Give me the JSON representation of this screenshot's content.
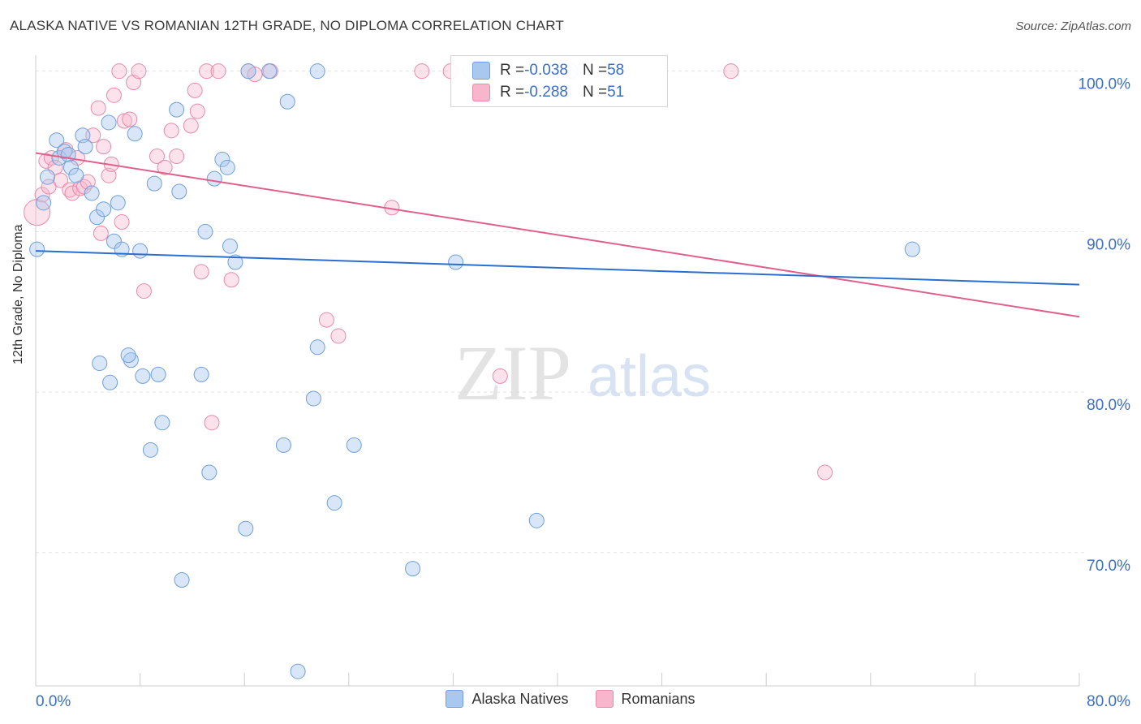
{
  "header": {
    "title": "ALASKA NATIVE VS ROMANIAN 12TH GRADE, NO DIPLOMA CORRELATION CHART",
    "source": "Source: ZipAtlas.com"
  },
  "watermark": {
    "zip": "ZIP",
    "atlas": "atlas"
  },
  "stats_box": {
    "rows": [
      {
        "r_label": "R = ",
        "r_value": "-0.038",
        "n_label": "N = ",
        "n_value": "58",
        "color": "#a8c8f0"
      },
      {
        "r_label": "R = ",
        "r_value": "-0.288",
        "n_label": "N = ",
        "n_value": "51",
        "color": "#f7b6cc"
      }
    ]
  },
  "colors": {
    "blue_fill": "#a8c8f0",
    "blue_line": "#2a6fd0",
    "pink_fill": "#f7b6cc",
    "pink_line": "#e0608c",
    "tick_label": "#3a6fc4",
    "grid": "#e2e2e2"
  },
  "chart_data": {
    "type": "scatter",
    "title": "ALASKA NATIVE VS ROMANIAN 12TH GRADE, NO DIPLOMA CORRELATION CHART",
    "xlabel": "",
    "ylabel": "12th Grade, No Diploma",
    "xlim": [
      0,
      80
    ],
    "ylim": [
      61.7,
      101.4
    ],
    "x_tick_labels": [
      "0.0%",
      "80.0%"
    ],
    "y_ticks": [
      {
        "value": 100,
        "label": "100.0%"
      },
      {
        "value": 90,
        "label": "90.0%"
      },
      {
        "value": 80,
        "label": "80.0%"
      },
      {
        "value": 70,
        "label": "70.0%"
      }
    ],
    "grid": true,
    "legend_position": "bottom-center",
    "series": [
      {
        "name": "Alaska Natives",
        "color": "#a8c8f0",
        "trend": {
          "x": [
            0,
            80
          ],
          "y": [
            88.8,
            86.7
          ]
        },
        "points": [
          [
            0.1,
            88.9
          ],
          [
            0.6,
            91.8
          ],
          [
            0.9,
            93.4
          ],
          [
            1.6,
            95.7
          ],
          [
            1.8,
            94.6
          ],
          [
            2.2,
            95.0
          ],
          [
            2.5,
            94.8
          ],
          [
            2.7,
            94.0
          ],
          [
            3.1,
            93.5
          ],
          [
            3.6,
            96.0
          ],
          [
            3.8,
            95.3
          ],
          [
            4.3,
            92.4
          ],
          [
            4.7,
            90.9
          ],
          [
            5.2,
            91.4
          ],
          [
            5.6,
            96.8
          ],
          [
            6.0,
            89.4
          ],
          [
            6.3,
            91.8
          ],
          [
            6.6,
            88.9
          ],
          [
            7.6,
            96.1
          ],
          [
            8.0,
            88.8
          ],
          [
            9.1,
            93.0
          ],
          [
            10.8,
            97.6
          ],
          [
            11.0,
            92.5
          ],
          [
            13.0,
            90.0
          ],
          [
            13.7,
            93.3
          ],
          [
            14.3,
            94.5
          ],
          [
            14.7,
            94.0
          ],
          [
            14.9,
            89.1
          ],
          [
            15.3,
            88.1
          ],
          [
            16.3,
            100.0
          ],
          [
            17.9,
            100.0
          ],
          [
            19.3,
            98.1
          ],
          [
            21.6,
            100.0
          ],
          [
            33.3,
            100.0
          ],
          [
            41.0,
            100.0
          ],
          [
            44.2,
            100.0
          ],
          [
            4.9,
            81.8
          ],
          [
            7.3,
            82.0
          ],
          [
            8.2,
            81.0
          ],
          [
            9.4,
            81.1
          ],
          [
            12.7,
            81.1
          ],
          [
            9.7,
            78.1
          ],
          [
            8.8,
            76.4
          ],
          [
            13.3,
            75.0
          ],
          [
            19.0,
            76.7
          ],
          [
            21.3,
            79.6
          ],
          [
            21.6,
            82.8
          ],
          [
            24.4,
            76.7
          ],
          [
            22.9,
            73.1
          ],
          [
            16.1,
            71.5
          ],
          [
            11.2,
            68.3
          ],
          [
            28.9,
            69.0
          ],
          [
            38.4,
            72.0
          ],
          [
            20.1,
            62.6
          ],
          [
            32.2,
            88.1
          ],
          [
            67.2,
            88.9
          ],
          [
            5.7,
            80.6
          ],
          [
            7.1,
            82.3
          ]
        ]
      },
      {
        "name": "Romanians",
        "color": "#f7b6cc",
        "trend": {
          "x": [
            0,
            80
          ],
          "y": [
            94.9,
            84.7
          ]
        },
        "points": [
          [
            0.1,
            91.2
          ],
          [
            0.5,
            92.3
          ],
          [
            0.8,
            94.4
          ],
          [
            1.2,
            94.6
          ],
          [
            1.5,
            94.0
          ],
          [
            1.9,
            93.2
          ],
          [
            2.3,
            95.1
          ],
          [
            2.6,
            92.6
          ],
          [
            2.8,
            92.4
          ],
          [
            3.2,
            94.6
          ],
          [
            3.4,
            92.7
          ],
          [
            3.7,
            92.8
          ],
          [
            4.0,
            93.1
          ],
          [
            4.4,
            96.0
          ],
          [
            4.8,
            97.7
          ],
          [
            5.2,
            95.3
          ],
          [
            5.6,
            93.5
          ],
          [
            5.8,
            94.2
          ],
          [
            6.0,
            98.5
          ],
          [
            6.4,
            100.0
          ],
          [
            6.8,
            96.9
          ],
          [
            7.2,
            97.0
          ],
          [
            7.5,
            99.3
          ],
          [
            7.9,
            100.0
          ],
          [
            8.3,
            86.3
          ],
          [
            9.3,
            94.7
          ],
          [
            9.9,
            94.0
          ],
          [
            10.4,
            96.3
          ],
          [
            10.8,
            94.7
          ],
          [
            11.9,
            96.6
          ],
          [
            12.2,
            98.8
          ],
          [
            12.4,
            97.5
          ],
          [
            13.1,
            100.0
          ],
          [
            14.0,
            100.0
          ],
          [
            12.7,
            87.5
          ],
          [
            15.0,
            87.0
          ],
          [
            16.3,
            100.0
          ],
          [
            16.8,
            99.8
          ],
          [
            18.0,
            100.0
          ],
          [
            22.3,
            84.5
          ],
          [
            23.2,
            83.5
          ],
          [
            27.3,
            91.5
          ],
          [
            29.6,
            100.0
          ],
          [
            31.8,
            100.0
          ],
          [
            35.6,
            81.0
          ],
          [
            53.3,
            100.0
          ],
          [
            60.5,
            75.0
          ],
          [
            5.0,
            89.9
          ],
          [
            6.6,
            90.6
          ],
          [
            13.5,
            78.1
          ],
          [
            1.0,
            92.8
          ]
        ]
      }
    ]
  }
}
